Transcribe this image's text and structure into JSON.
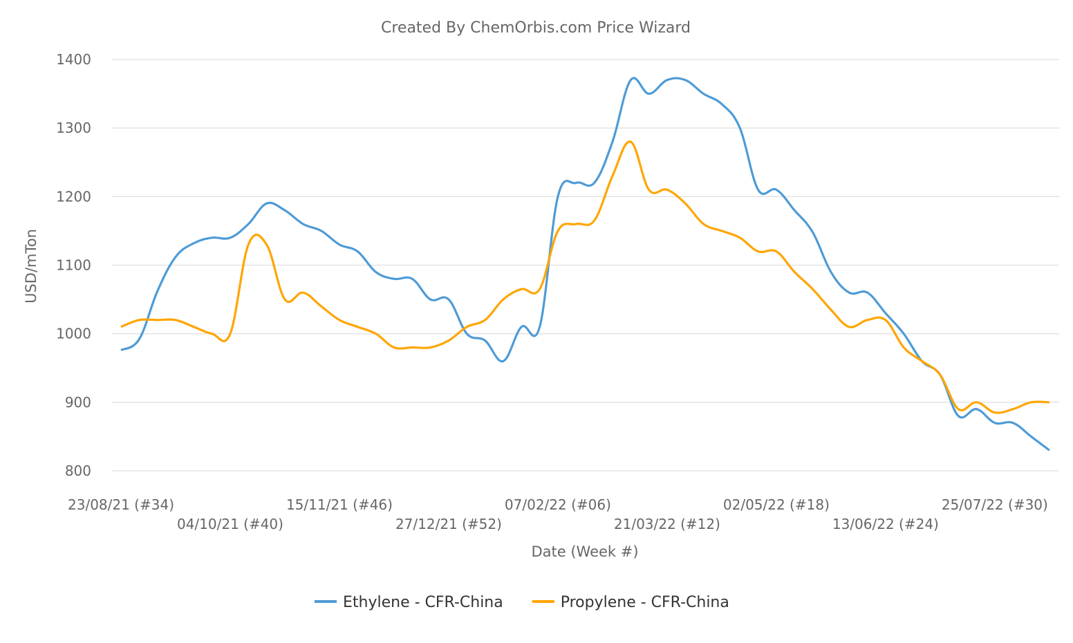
{
  "chart_data": {
    "type": "line",
    "title": "Created By ChemOrbis.com Price Wizard",
    "xlabel": "Date (Week #)",
    "ylabel": "USD/mTon",
    "ylim": [
      800,
      1400
    ],
    "yticks": [
      800,
      900,
      1000,
      1100,
      1200,
      1300,
      1400
    ],
    "grid": true,
    "legend_position": "bottom",
    "xtick_labels": [
      {
        "index": 0,
        "label": "23/08/21 (#34)"
      },
      {
        "index": 6,
        "label": "04/10/21 (#40)"
      },
      {
        "index": 12,
        "label": "15/11/21 (#46)"
      },
      {
        "index": 18,
        "label": "27/12/21 (#52)"
      },
      {
        "index": 24,
        "label": "07/02/22 (#06)"
      },
      {
        "index": 30,
        "label": "21/03/22 (#12)"
      },
      {
        "index": 36,
        "label": "02/05/22 (#18)"
      },
      {
        "index": 42,
        "label": "13/06/22 (#24)"
      },
      {
        "index": 48,
        "label": "25/07/22 (#30)"
      }
    ],
    "x": [
      "23/08/21",
      "30/08/21",
      "06/09/21",
      "13/09/21",
      "20/09/21",
      "27/09/21",
      "04/10/21",
      "11/10/21",
      "18/10/21",
      "25/10/21",
      "01/11/21",
      "08/11/21",
      "15/11/21",
      "22/11/21",
      "29/11/21",
      "06/12/21",
      "13/12/21",
      "20/12/21",
      "27/12/21",
      "03/01/22",
      "10/01/22",
      "17/01/22",
      "24/01/22",
      "31/01/22",
      "07/02/22",
      "14/02/22",
      "21/02/22",
      "28/02/22",
      "07/03/22",
      "14/03/22",
      "21/03/22",
      "28/03/22",
      "04/04/22",
      "11/04/22",
      "18/04/22",
      "25/04/22",
      "02/05/22",
      "09/05/22",
      "16/05/22",
      "23/05/22",
      "30/05/22",
      "06/06/22",
      "13/06/22",
      "20/06/22",
      "27/06/22",
      "04/07/22",
      "11/07/22",
      "18/07/22",
      "25/07/22",
      "01/08/22",
      "08/08/22",
      "15/08/22"
    ],
    "series": [
      {
        "name": "Ethylene - CFR-China",
        "color": "#4e9bd6",
        "values": [
          976,
          992,
          1062,
          1112,
          1132,
          1140,
          1140,
          1160,
          1190,
          1180,
          1160,
          1150,
          1130,
          1120,
          1090,
          1080,
          1080,
          1050,
          1050,
          1000,
          990,
          960,
          1010,
          1010,
          1200,
          1220,
          1220,
          1280,
          1370,
          1350,
          1370,
          1370,
          1350,
          1335,
          1300,
          1210,
          1210,
          1180,
          1148,
          1090,
          1060,
          1060,
          1030,
          1000,
          960,
          940,
          880,
          890,
          870,
          870,
          850,
          830
        ]
      },
      {
        "name": "Propylene - CFR-China",
        "color": "#ffa500",
        "values": [
          1010,
          1020,
          1020,
          1020,
          1010,
          1000,
          1000,
          1130,
          1130,
          1050,
          1060,
          1040,
          1020,
          1010,
          1000,
          980,
          980,
          980,
          990,
          1010,
          1020,
          1050,
          1065,
          1065,
          1150,
          1160,
          1165,
          1230,
          1280,
          1210,
          1210,
          1190,
          1160,
          1150,
          1140,
          1120,
          1120,
          1090,
          1065,
          1035,
          1010,
          1020,
          1020,
          980,
          960,
          940,
          890,
          900,
          885,
          890,
          900,
          900
        ]
      }
    ]
  }
}
